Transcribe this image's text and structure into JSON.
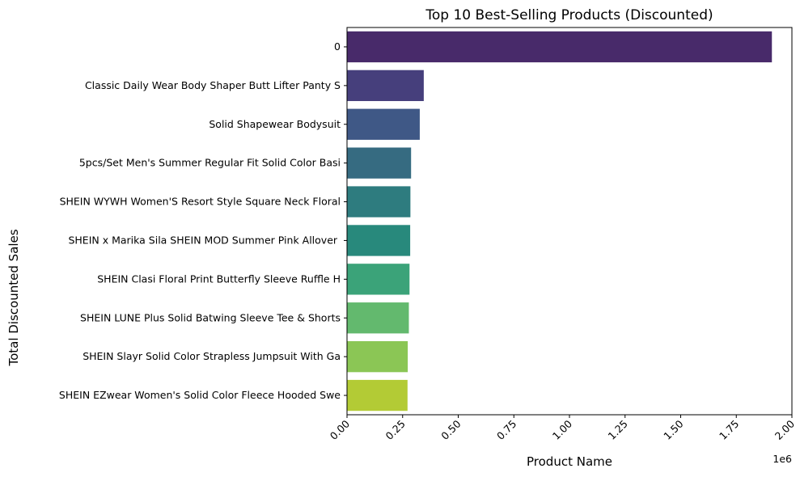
{
  "chart_data": {
    "type": "bar",
    "orientation": "horizontal",
    "title": "Top 10 Best-Selling Products (Discounted)",
    "xlabel": "Product Name",
    "ylabel": "Total Discounted Sales",
    "x_offset_label": "1e6",
    "xlim": [
      0,
      2.0
    ],
    "xticks": [
      "0.00",
      "0.25",
      "0.50",
      "0.75",
      "1.00",
      "1.25",
      "1.50",
      "1.75",
      "2.00"
    ],
    "grid": false,
    "categories": [
      "0",
      "Classic Daily Wear Body Shaper Butt Lifter Panty S",
      "Solid Shapewear Bodysuit",
      "5pcs/Set Men's Summer Regular Fit Solid Color Basi",
      "SHEIN WYWH Women'S Resort Style Square Neck Floral",
      "SHEIN x Marika Sila SHEIN MOD Summer Pink Allover ",
      "SHEIN Clasi Floral Print Butterfly Sleeve Ruffle H",
      "SHEIN LUNE Plus Solid Batwing Sleeve Tee & Shorts",
      "SHEIN Slayr Solid Color Strapless Jumpsuit With Ga",
      "SHEIN EZwear Women's Solid Color Fleece Hooded Swe"
    ],
    "values": [
      1.91,
      0.345,
      0.327,
      0.288,
      0.285,
      0.284,
      0.281,
      0.278,
      0.273,
      0.272
    ],
    "colors": [
      "#482a6a",
      "#463f7c",
      "#3f5886",
      "#366b81",
      "#2e7c7f",
      "#28897c",
      "#3ba379",
      "#63b96e",
      "#8bc655",
      "#b3cb35"
    ]
  }
}
